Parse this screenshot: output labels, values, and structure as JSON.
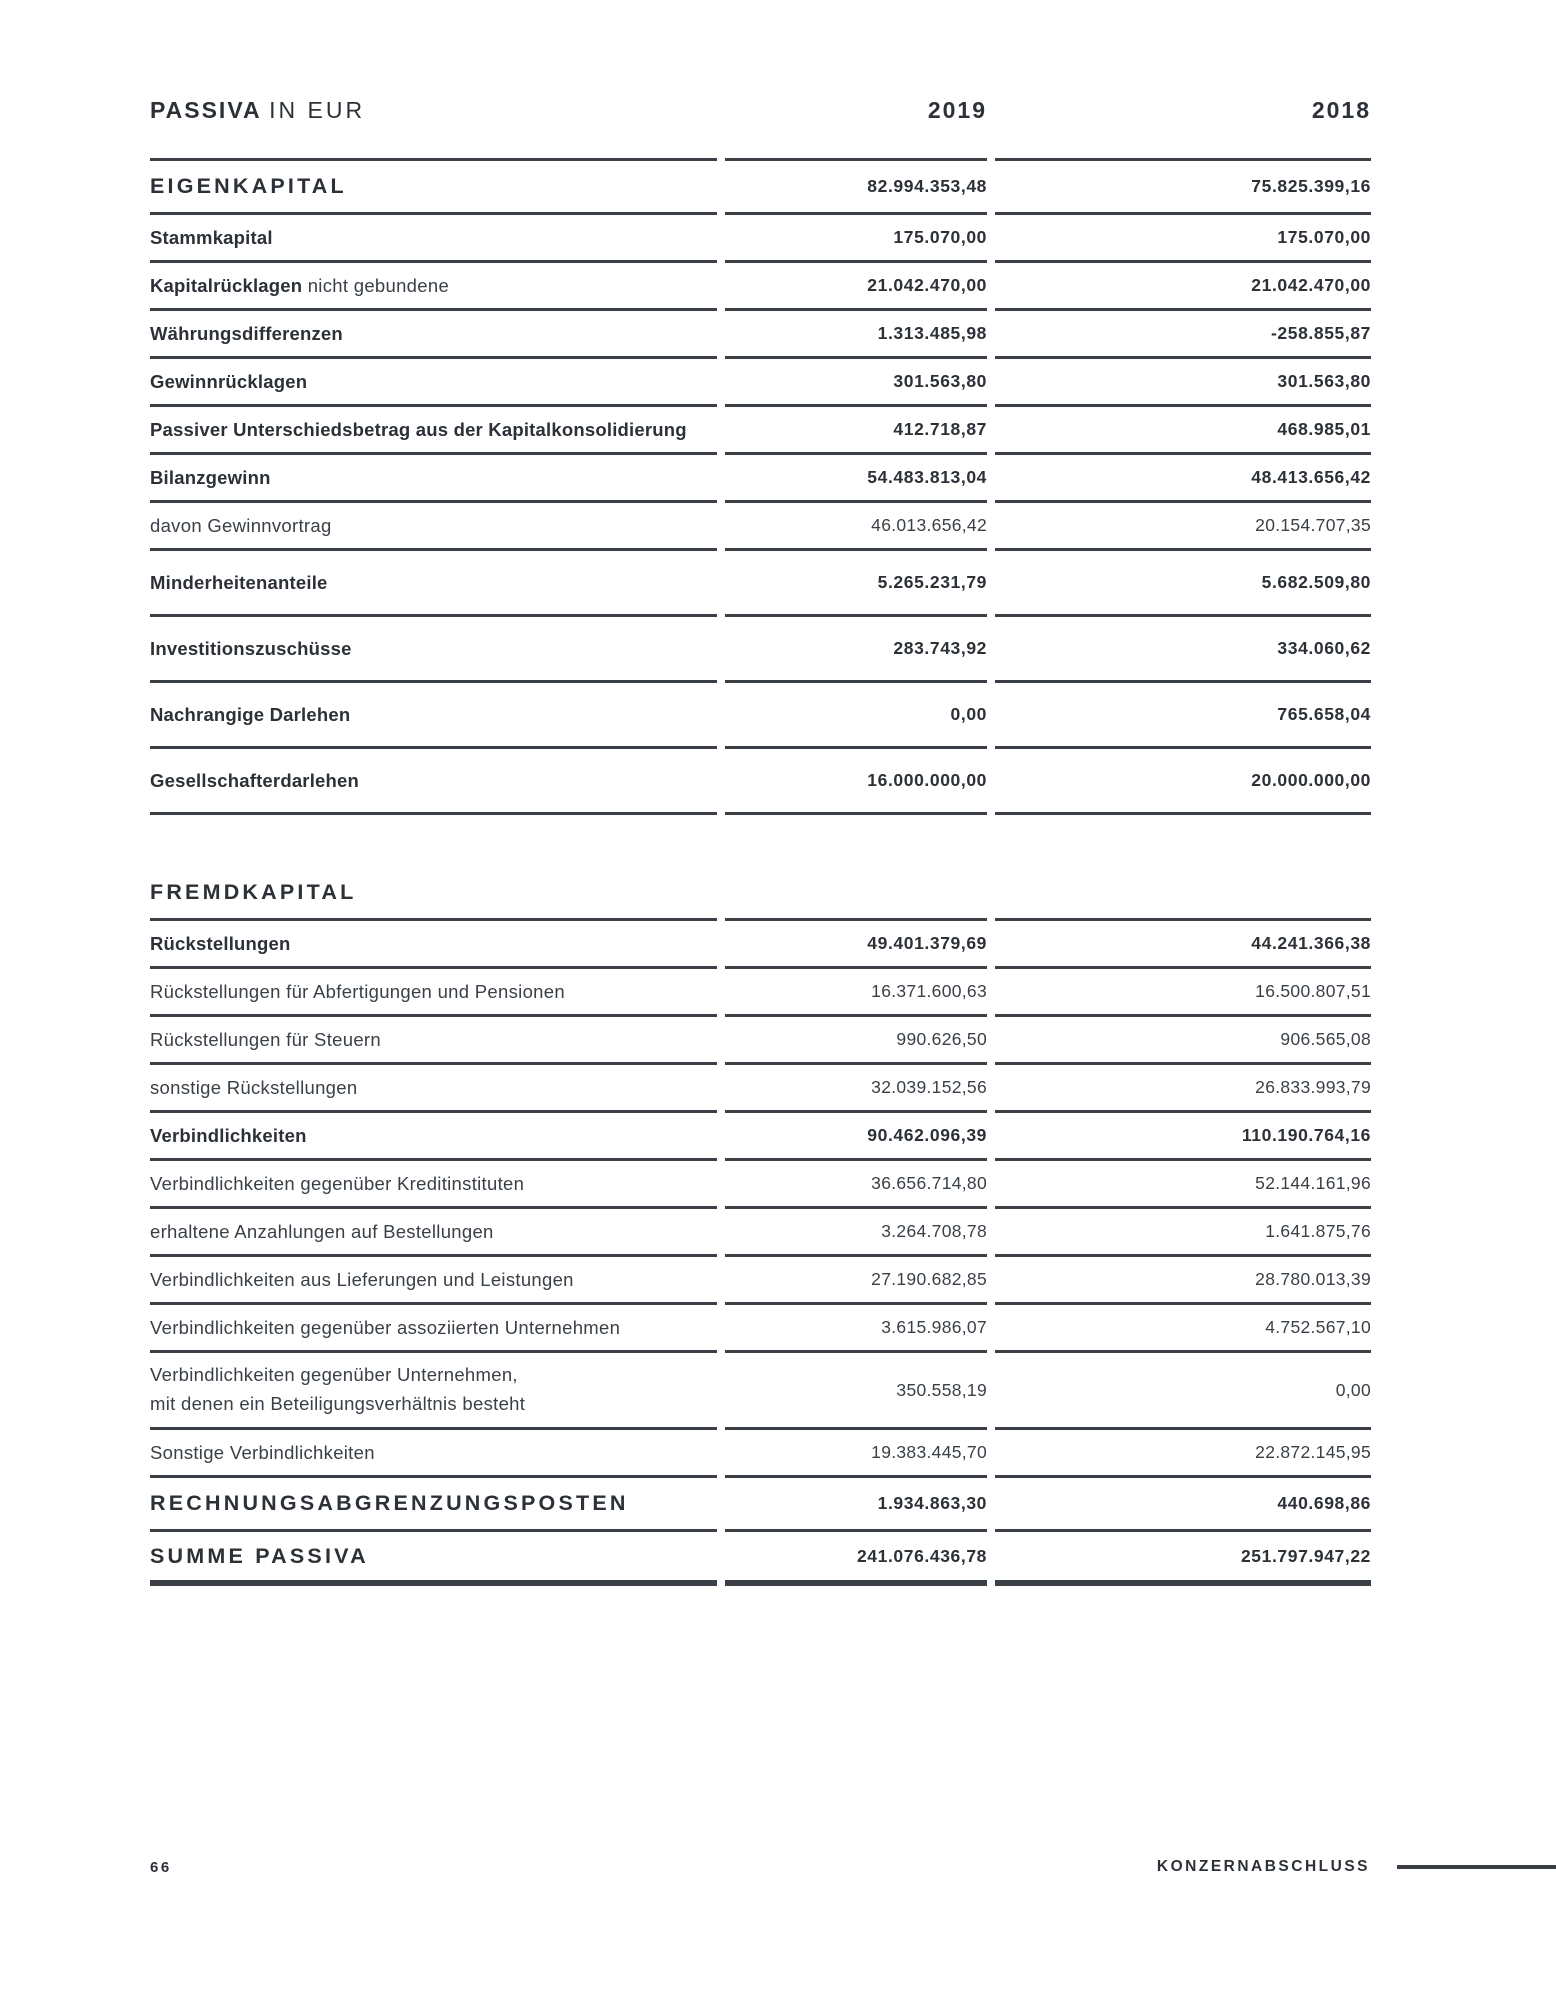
{
  "document": {
    "title": {
      "bold": "PASSIVA",
      "regular": "IN EUR"
    },
    "columns": {
      "y2019": "2019",
      "y2018": "2018"
    },
    "footer": {
      "page_number": "66",
      "chapter": "KONZERNABSCHLUSS"
    },
    "colors": {
      "ink": "#2c3137",
      "rule": "#3a3f45"
    }
  },
  "table": {
    "rows": [
      {
        "type": "section",
        "label": "EIGENKAPITAL",
        "v2019": "82.994.353,48",
        "v2018": "75.825.399,16"
      },
      {
        "type": "bold",
        "label": "Stammkapital",
        "v2019": "175.070,00",
        "v2018": "175.070,00"
      },
      {
        "type": "bold",
        "label": "Kapitalrücklagen",
        "label_suffix": "nicht gebundene",
        "v2019": "21.042.470,00",
        "v2018": "21.042.470,00"
      },
      {
        "type": "bold",
        "label": "Währungsdifferenzen",
        "v2019": "1.313.485,98",
        "v2018": "-258.855,87"
      },
      {
        "type": "bold",
        "label": "Gewinnrücklagen",
        "v2019": "301.563,80",
        "v2018": "301.563,80"
      },
      {
        "type": "bold",
        "label": "Passiver Unterschiedsbetrag aus der Kapitalkonsolidierung",
        "v2019": "412.718,87",
        "v2018": "468.985,01"
      },
      {
        "type": "bold",
        "label": "Bilanzgewinn",
        "v2019": "54.483.813,04",
        "v2018": "48.413.656,42"
      },
      {
        "type": "light",
        "label": "davon Gewinnvortrag",
        "v2019": "46.013.656,42",
        "v2018": "20.154.707,35"
      },
      {
        "type": "bold",
        "tall": true,
        "label": "Minderheitenanteile",
        "v2019": "5.265.231,79",
        "v2018": "5.682.509,80"
      },
      {
        "type": "bold",
        "tall": true,
        "label": "Investitionszuschüsse",
        "v2019": "283.743,92",
        "v2018": "334.060,62"
      },
      {
        "type": "bold",
        "tall": true,
        "label": "Nachrangige Darlehen",
        "v2019": "0,00",
        "v2018": "765.658,04"
      },
      {
        "type": "bold",
        "tall": true,
        "label": "Gesellschafterdarlehen",
        "v2019": "16.000.000,00",
        "v2018": "20.000.000,00"
      },
      {
        "type": "spacer"
      },
      {
        "type": "section",
        "label": "FREMDKAPITAL",
        "v2019": "",
        "v2018": ""
      },
      {
        "type": "bold",
        "label": "Rückstellungen",
        "v2019": "49.401.379,69",
        "v2018": "44.241.366,38"
      },
      {
        "type": "light",
        "label": "Rückstellungen für Abfertigungen und Pensionen",
        "v2019": "16.371.600,63",
        "v2018": "16.500.807,51"
      },
      {
        "type": "light",
        "label": "Rückstellungen für Steuern",
        "v2019": "990.626,50",
        "v2018": "906.565,08"
      },
      {
        "type": "light",
        "label": "sonstige Rückstellungen",
        "v2019": "32.039.152,56",
        "v2018": "26.833.993,79"
      },
      {
        "type": "bold",
        "label": "Verbindlichkeiten",
        "v2019": "90.462.096,39",
        "v2018": "110.190.764,16"
      },
      {
        "type": "light",
        "label": "Verbindlichkeiten gegenüber Kreditinstituten",
        "v2019": "36.656.714,80",
        "v2018": "52.144.161,96"
      },
      {
        "type": "light",
        "label": "erhaltene Anzahlungen auf Bestellungen",
        "v2019": "3.264.708,78",
        "v2018": "1.641.875,76"
      },
      {
        "type": "light",
        "label": "Verbindlichkeiten aus Lieferungen und Leistungen",
        "v2019": "27.190.682,85",
        "v2018": "28.780.013,39"
      },
      {
        "type": "light",
        "label": "Verbindlichkeiten gegenüber assoziierten Unternehmen",
        "v2019": "3.615.986,07",
        "v2018": "4.752.567,10"
      },
      {
        "type": "light",
        "twoline": true,
        "label": "Verbindlichkeiten gegenüber Unternehmen,",
        "label_line2": "mit denen ein Beteiligungsverhältnis besteht",
        "v2019": "350.558,19",
        "v2018": "0,00"
      },
      {
        "type": "light",
        "label": "Sonstige Verbindlichkeiten",
        "v2019": "19.383.445,70",
        "v2018": "22.872.145,95"
      },
      {
        "type": "section",
        "label": "RECHNUNGSABGRENZUNGSPOSTEN",
        "v2019": "1.934.863,30",
        "v2018": "440.698,86"
      },
      {
        "type": "section",
        "total": true,
        "label": "SUMME PASSIVA",
        "v2019": "241.076.436,78",
        "v2018": "251.797.947,22"
      }
    ]
  }
}
